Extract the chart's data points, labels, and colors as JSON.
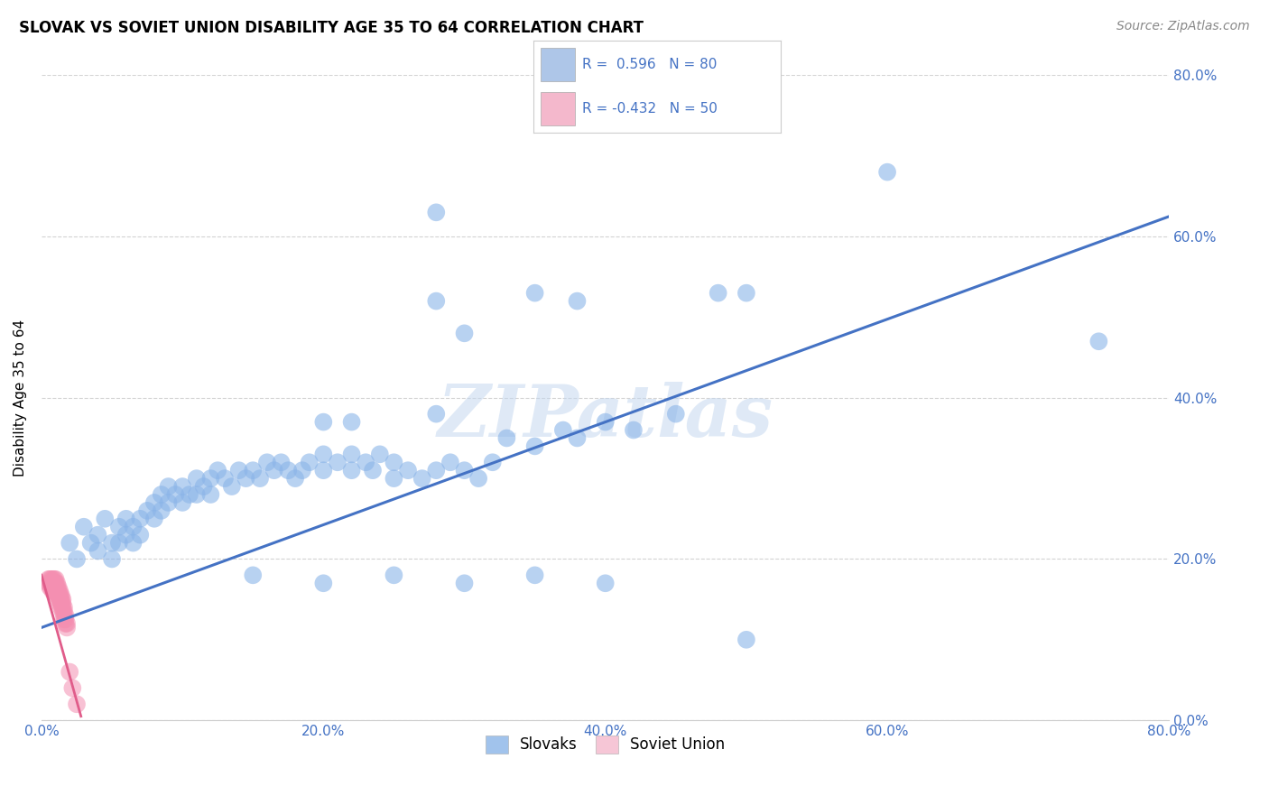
{
  "title": "SLOVAK VS SOVIET UNION DISABILITY AGE 35 TO 64 CORRELATION CHART",
  "source": "Source: ZipAtlas.com",
  "xlim": [
    0.0,
    0.8
  ],
  "ylim": [
    0.0,
    0.8
  ],
  "watermark_text": "ZIPatlas",
  "blue_color": "#4472c4",
  "pink_color": "#e05c8a",
  "blue_scatter_color": "#8ab4e8",
  "pink_scatter_color": "#f48fb1",
  "legend_blue_color": "#aec6e8",
  "legend_pink_color": "#f4b8cc",
  "tick_color": "#4472c4",
  "grid_color": "#c8c8c8",
  "blue_scatter": [
    [
      0.02,
      0.22
    ],
    [
      0.025,
      0.2
    ],
    [
      0.03,
      0.24
    ],
    [
      0.035,
      0.22
    ],
    [
      0.04,
      0.23
    ],
    [
      0.045,
      0.25
    ],
    [
      0.04,
      0.21
    ],
    [
      0.05,
      0.22
    ],
    [
      0.05,
      0.2
    ],
    [
      0.055,
      0.24
    ],
    [
      0.055,
      0.22
    ],
    [
      0.06,
      0.23
    ],
    [
      0.06,
      0.25
    ],
    [
      0.065,
      0.24
    ],
    [
      0.065,
      0.22
    ],
    [
      0.07,
      0.23
    ],
    [
      0.07,
      0.25
    ],
    [
      0.075,
      0.26
    ],
    [
      0.08,
      0.27
    ],
    [
      0.08,
      0.25
    ],
    [
      0.085,
      0.28
    ],
    [
      0.085,
      0.26
    ],
    [
      0.09,
      0.27
    ],
    [
      0.09,
      0.29
    ],
    [
      0.095,
      0.28
    ],
    [
      0.1,
      0.29
    ],
    [
      0.1,
      0.27
    ],
    [
      0.105,
      0.28
    ],
    [
      0.11,
      0.3
    ],
    [
      0.11,
      0.28
    ],
    [
      0.115,
      0.29
    ],
    [
      0.12,
      0.3
    ],
    [
      0.12,
      0.28
    ],
    [
      0.125,
      0.31
    ],
    [
      0.13,
      0.3
    ],
    [
      0.135,
      0.29
    ],
    [
      0.14,
      0.31
    ],
    [
      0.145,
      0.3
    ],
    [
      0.15,
      0.31
    ],
    [
      0.155,
      0.3
    ],
    [
      0.16,
      0.32
    ],
    [
      0.165,
      0.31
    ],
    [
      0.17,
      0.32
    ],
    [
      0.175,
      0.31
    ],
    [
      0.18,
      0.3
    ],
    [
      0.185,
      0.31
    ],
    [
      0.19,
      0.32
    ],
    [
      0.2,
      0.31
    ],
    [
      0.2,
      0.33
    ],
    [
      0.21,
      0.32
    ],
    [
      0.22,
      0.31
    ],
    [
      0.22,
      0.33
    ],
    [
      0.23,
      0.32
    ],
    [
      0.235,
      0.31
    ],
    [
      0.24,
      0.33
    ],
    [
      0.25,
      0.32
    ],
    [
      0.25,
      0.3
    ],
    [
      0.26,
      0.31
    ],
    [
      0.27,
      0.3
    ],
    [
      0.28,
      0.31
    ],
    [
      0.29,
      0.32
    ],
    [
      0.3,
      0.31
    ],
    [
      0.31,
      0.3
    ],
    [
      0.32,
      0.32
    ],
    [
      0.33,
      0.35
    ],
    [
      0.35,
      0.34
    ],
    [
      0.37,
      0.36
    ],
    [
      0.38,
      0.35
    ],
    [
      0.4,
      0.37
    ],
    [
      0.42,
      0.36
    ],
    [
      0.45,
      0.38
    ],
    [
      0.15,
      0.18
    ],
    [
      0.2,
      0.17
    ],
    [
      0.25,
      0.18
    ],
    [
      0.3,
      0.17
    ],
    [
      0.35,
      0.18
    ],
    [
      0.4,
      0.17
    ],
    [
      0.5,
      0.1
    ],
    [
      0.2,
      0.37
    ],
    [
      0.22,
      0.37
    ],
    [
      0.28,
      0.38
    ],
    [
      0.28,
      0.52
    ],
    [
      0.3,
      0.48
    ],
    [
      0.35,
      0.53
    ],
    [
      0.38,
      0.52
    ],
    [
      0.48,
      0.53
    ],
    [
      0.6,
      0.68
    ],
    [
      0.28,
      0.63
    ],
    [
      0.5,
      0.53
    ],
    [
      0.75,
      0.47
    ]
  ],
  "pink_scatter": [
    [
      0.005,
      0.175
    ],
    [
      0.005,
      0.17
    ],
    [
      0.006,
      0.175
    ],
    [
      0.006,
      0.17
    ],
    [
      0.006,
      0.165
    ],
    [
      0.007,
      0.175
    ],
    [
      0.007,
      0.17
    ],
    [
      0.007,
      0.165
    ],
    [
      0.008,
      0.175
    ],
    [
      0.008,
      0.17
    ],
    [
      0.008,
      0.165
    ],
    [
      0.008,
      0.16
    ],
    [
      0.009,
      0.175
    ],
    [
      0.009,
      0.17
    ],
    [
      0.009,
      0.165
    ],
    [
      0.009,
      0.16
    ],
    [
      0.01,
      0.175
    ],
    [
      0.01,
      0.17
    ],
    [
      0.01,
      0.165
    ],
    [
      0.01,
      0.16
    ],
    [
      0.011,
      0.17
    ],
    [
      0.011,
      0.165
    ],
    [
      0.011,
      0.16
    ],
    [
      0.011,
      0.155
    ],
    [
      0.012,
      0.165
    ],
    [
      0.012,
      0.16
    ],
    [
      0.012,
      0.155
    ],
    [
      0.012,
      0.15
    ],
    [
      0.013,
      0.16
    ],
    [
      0.013,
      0.155
    ],
    [
      0.013,
      0.15
    ],
    [
      0.013,
      0.145
    ],
    [
      0.014,
      0.155
    ],
    [
      0.014,
      0.15
    ],
    [
      0.014,
      0.145
    ],
    [
      0.014,
      0.14
    ],
    [
      0.015,
      0.15
    ],
    [
      0.015,
      0.145
    ],
    [
      0.015,
      0.14
    ],
    [
      0.015,
      0.135
    ],
    [
      0.016,
      0.14
    ],
    [
      0.016,
      0.135
    ],
    [
      0.016,
      0.13
    ],
    [
      0.016,
      0.125
    ],
    [
      0.017,
      0.13
    ],
    [
      0.017,
      0.125
    ],
    [
      0.017,
      0.12
    ],
    [
      0.018,
      0.12
    ],
    [
      0.018,
      0.115
    ],
    [
      0.02,
      0.06
    ],
    [
      0.022,
      0.04
    ],
    [
      0.025,
      0.02
    ]
  ],
  "regression_blue": {
    "x_start": 0.0,
    "y_start": 0.115,
    "x_end": 0.8,
    "y_end": 0.625
  },
  "regression_pink": {
    "x_start": 0.0,
    "y_start": 0.18,
    "x_end": 0.028,
    "y_end": 0.005
  },
  "title_fontsize": 12,
  "source_fontsize": 10,
  "axis_label_fontsize": 11,
  "tick_fontsize": 11
}
